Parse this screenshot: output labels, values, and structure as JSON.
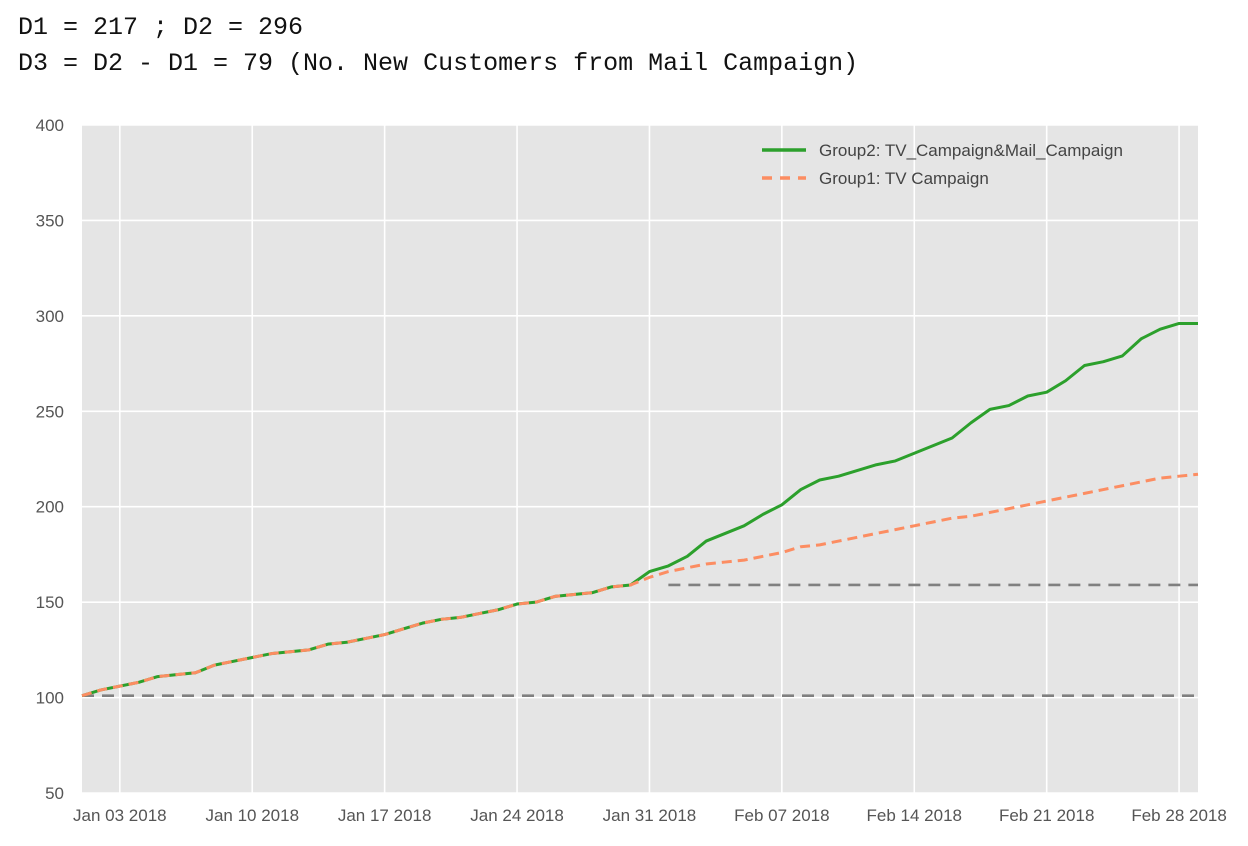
{
  "header": {
    "line1": "D1 = 217 ; D2 = 296",
    "line2": "D3 = D2 - D1 = 79 (No. New Customers from Mail Campaign)"
  },
  "colors": {
    "background": "#e5e5e5",
    "grid": "#ffffff",
    "group2": "#2ca02c",
    "group1": "#fc8d62",
    "reference": "#808080"
  },
  "chart_data": {
    "type": "line",
    "title": "",
    "xlabel": "",
    "ylabel": "",
    "ylim": [
      50,
      400
    ],
    "yticks": [
      50,
      100,
      150,
      200,
      250,
      300,
      350,
      400
    ],
    "xlim": [
      "2018-01-01",
      "2018-03-01"
    ],
    "xticks": [
      {
        "date": "2018-01-03",
        "label": "Jan 03 2018"
      },
      {
        "date": "2018-01-10",
        "label": "Jan 10 2018"
      },
      {
        "date": "2018-01-17",
        "label": "Jan 17 2018"
      },
      {
        "date": "2018-01-24",
        "label": "Jan 24 2018"
      },
      {
        "date": "2018-01-31",
        "label": "Jan 31 2018"
      },
      {
        "date": "2018-02-07",
        "label": "Feb 07 2018"
      },
      {
        "date": "2018-02-14",
        "label": "Feb 14 2018"
      },
      {
        "date": "2018-02-21",
        "label": "Feb 21 2018"
      },
      {
        "date": "2018-02-28",
        "label": "Feb 28 2018"
      }
    ],
    "grid": true,
    "legend_position": "top-right",
    "series": [
      {
        "name": "Group2: TV_Campaign&Mail_Campaign",
        "style": "solid",
        "color": "#2ca02c",
        "x": [
          "2018-01-01",
          "2018-01-02",
          "2018-01-03",
          "2018-01-04",
          "2018-01-05",
          "2018-01-06",
          "2018-01-07",
          "2018-01-08",
          "2018-01-09",
          "2018-01-10",
          "2018-01-11",
          "2018-01-12",
          "2018-01-13",
          "2018-01-14",
          "2018-01-15",
          "2018-01-16",
          "2018-01-17",
          "2018-01-18",
          "2018-01-19",
          "2018-01-20",
          "2018-01-21",
          "2018-01-22",
          "2018-01-23",
          "2018-01-24",
          "2018-01-25",
          "2018-01-26",
          "2018-01-27",
          "2018-01-28",
          "2018-01-29",
          "2018-01-30",
          "2018-01-31",
          "2018-02-01",
          "2018-02-02",
          "2018-02-03",
          "2018-02-04",
          "2018-02-05",
          "2018-02-06",
          "2018-02-07",
          "2018-02-08",
          "2018-02-09",
          "2018-02-10",
          "2018-02-11",
          "2018-02-12",
          "2018-02-13",
          "2018-02-14",
          "2018-02-15",
          "2018-02-16",
          "2018-02-17",
          "2018-02-18",
          "2018-02-19",
          "2018-02-20",
          "2018-02-21",
          "2018-02-22",
          "2018-02-23",
          "2018-02-24",
          "2018-02-25",
          "2018-02-26",
          "2018-02-27",
          "2018-02-28",
          "2018-03-01"
        ],
        "values": [
          101,
          104,
          106,
          108,
          111,
          112,
          113,
          117,
          119,
          121,
          123,
          124,
          125,
          128,
          129,
          131,
          133,
          136,
          139,
          141,
          142,
          144,
          146,
          149,
          150,
          153,
          154,
          155,
          158,
          159,
          166,
          169,
          174,
          182,
          186,
          190,
          196,
          201,
          209,
          214,
          216,
          219,
          222,
          224,
          228,
          232,
          236,
          244,
          251,
          253,
          258,
          260,
          266,
          274,
          276,
          279,
          288,
          293,
          296,
          296
        ],
        "label_only_prefix": false
      },
      {
        "name": "Group1: TV Campaign",
        "style": "dashed",
        "color": "#fc8d62",
        "x": [
          "2018-01-01",
          "2018-01-02",
          "2018-01-03",
          "2018-01-04",
          "2018-01-05",
          "2018-01-06",
          "2018-01-07",
          "2018-01-08",
          "2018-01-09",
          "2018-01-10",
          "2018-01-11",
          "2018-01-12",
          "2018-01-13",
          "2018-01-14",
          "2018-01-15",
          "2018-01-16",
          "2018-01-17",
          "2018-01-18",
          "2018-01-19",
          "2018-01-20",
          "2018-01-21",
          "2018-01-22",
          "2018-01-23",
          "2018-01-24",
          "2018-01-25",
          "2018-01-26",
          "2018-01-27",
          "2018-01-28",
          "2018-01-29",
          "2018-01-30",
          "2018-01-31",
          "2018-02-01",
          "2018-02-02",
          "2018-02-03",
          "2018-02-04",
          "2018-02-05",
          "2018-02-06",
          "2018-02-07",
          "2018-02-08",
          "2018-02-09",
          "2018-02-10",
          "2018-02-11",
          "2018-02-12",
          "2018-02-13",
          "2018-02-14",
          "2018-02-15",
          "2018-02-16",
          "2018-02-17",
          "2018-02-18",
          "2018-02-19",
          "2018-02-20",
          "2018-02-21",
          "2018-02-22",
          "2018-02-23",
          "2018-02-24",
          "2018-02-25",
          "2018-02-26",
          "2018-02-27",
          "2018-02-28",
          "2018-03-01"
        ],
        "values": [
          101,
          104,
          106,
          108,
          111,
          112,
          113,
          117,
          119,
          121,
          123,
          124,
          125,
          128,
          129,
          131,
          133,
          136,
          139,
          141,
          142,
          144,
          146,
          149,
          150,
          153,
          154,
          155,
          158,
          159,
          163,
          166,
          168,
          170,
          171,
          172,
          174,
          176,
          179,
          180,
          182,
          184,
          186,
          188,
          190,
          192,
          194,
          195,
          197,
          199,
          201,
          203,
          205,
          207,
          209,
          211,
          213,
          215,
          216,
          217
        ]
      }
    ],
    "reference_lines": [
      {
        "y": 101,
        "style": "dashed",
        "color": "#808080"
      },
      {
        "y": 159,
        "style": "dashed",
        "color": "#808080",
        "from": "2018-02-01"
      }
    ]
  }
}
